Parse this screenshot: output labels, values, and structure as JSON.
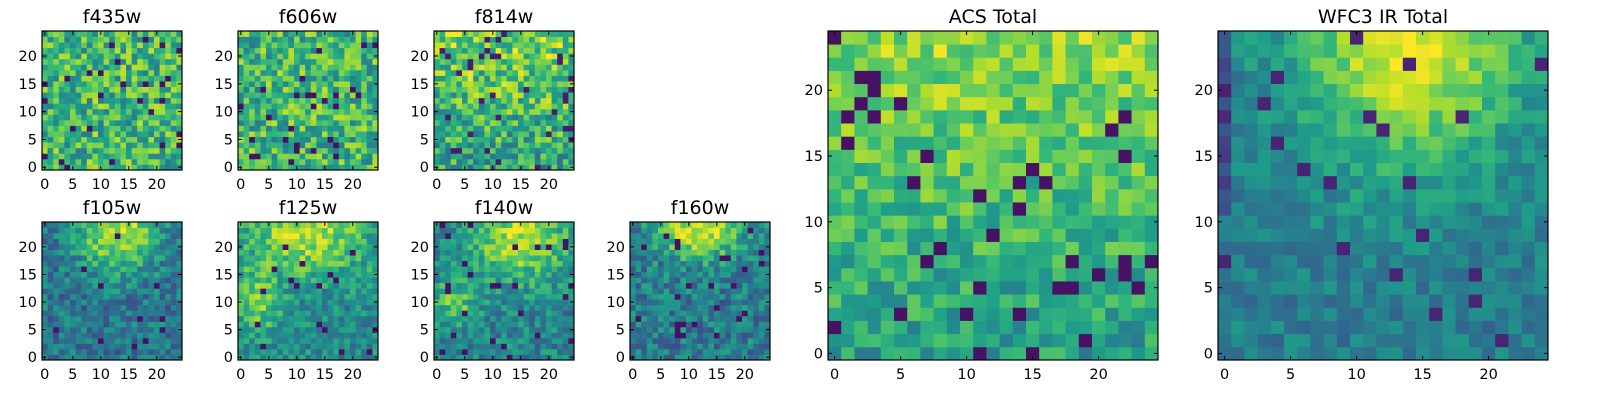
{
  "colormap": "viridis",
  "chart_data": [
    {
      "type": "heatmap",
      "title": "f435w",
      "grid_size": 25,
      "xticks": [
        0,
        5,
        10,
        15,
        20
      ],
      "yticks": [
        0,
        5,
        10,
        15,
        20
      ],
      "xlim": [
        -0.5,
        24.5
      ],
      "ylim": [
        -0.5,
        24.5
      ],
      "pattern": "noise",
      "value_range": [
        0.0,
        1.0
      ],
      "grid": false
    },
    {
      "type": "heatmap",
      "title": "f606w",
      "grid_size": 25,
      "xticks": [
        0,
        5,
        10,
        15,
        20
      ],
      "yticks": [
        0,
        5,
        10,
        15,
        20
      ],
      "xlim": [
        -0.5,
        24.5
      ],
      "ylim": [
        -0.5,
        24.5
      ],
      "pattern": "noise",
      "value_range": [
        0.0,
        1.0
      ],
      "grid": false
    },
    {
      "type": "heatmap",
      "title": "f814w",
      "grid_size": 25,
      "xticks": [
        0,
        5,
        10,
        15,
        20
      ],
      "yticks": [
        0,
        5,
        10,
        15,
        20
      ],
      "xlim": [
        -0.5,
        24.5
      ],
      "ylim": [
        -0.5,
        24.5
      ],
      "pattern": "noise, bright toward top",
      "value_range": [
        0.0,
        1.0
      ],
      "grid": false
    },
    {
      "type": "heatmap",
      "title": "f105w",
      "grid_size": 25,
      "xticks": [
        0,
        5,
        10,
        15,
        20
      ],
      "yticks": [
        0,
        5,
        10,
        15,
        20
      ],
      "xlim": [
        -0.5,
        24.5
      ],
      "ylim": [
        -0.5,
        24.5
      ],
      "pattern": "bright blob top-center",
      "value_range": [
        0.0,
        1.0
      ],
      "grid": false
    },
    {
      "type": "heatmap",
      "title": "f125w",
      "grid_size": 25,
      "xticks": [
        0,
        5,
        10,
        15,
        20
      ],
      "yticks": [
        0,
        5,
        10,
        15,
        20
      ],
      "xlim": [
        -0.5,
        24.5
      ],
      "ylim": [
        -0.5,
        24.5
      ],
      "pattern": "bright top and left",
      "value_range": [
        0.0,
        1.0
      ],
      "grid": false
    },
    {
      "type": "heatmap",
      "title": "f140w",
      "grid_size": 25,
      "xticks": [
        0,
        5,
        10,
        15,
        20
      ],
      "yticks": [
        0,
        5,
        10,
        15,
        20
      ],
      "xlim": [
        -0.5,
        24.5
      ],
      "ylim": [
        -0.5,
        24.5
      ],
      "pattern": "bright top-center",
      "value_range": [
        0.0,
        1.0
      ],
      "grid": false
    },
    {
      "type": "heatmap",
      "title": "f160w",
      "grid_size": 25,
      "xticks": [
        0,
        5,
        10,
        15,
        20
      ],
      "yticks": [
        0,
        5,
        10,
        15,
        20
      ],
      "xlim": [
        -0.5,
        24.5
      ],
      "ylim": [
        -0.5,
        24.5
      ],
      "pattern": "bright top-center",
      "value_range": [
        0.0,
        1.0
      ],
      "grid": false
    },
    {
      "type": "heatmap",
      "title": "ACS Total",
      "grid_size": 25,
      "xticks": [
        0,
        5,
        10,
        15,
        20
      ],
      "yticks": [
        0,
        5,
        10,
        15,
        20
      ],
      "xlim": [
        -0.5,
        24.5
      ],
      "ylim": [
        -0.5,
        24.5
      ],
      "pattern": "bright toward top",
      "value_range": [
        0.0,
        1.0
      ],
      "grid": false
    },
    {
      "type": "heatmap",
      "title": "WFC3 IR Total",
      "grid_size": 25,
      "xticks": [
        0,
        5,
        10,
        15,
        20
      ],
      "yticks": [
        0,
        5,
        10,
        15,
        20
      ],
      "xlim": [
        -0.5,
        24.5
      ],
      "ylim": [
        -0.5,
        24.5
      ],
      "pattern": "bright blob top-center, dark left edge",
      "value_range": [
        0.0,
        1.0
      ],
      "grid": false
    }
  ]
}
